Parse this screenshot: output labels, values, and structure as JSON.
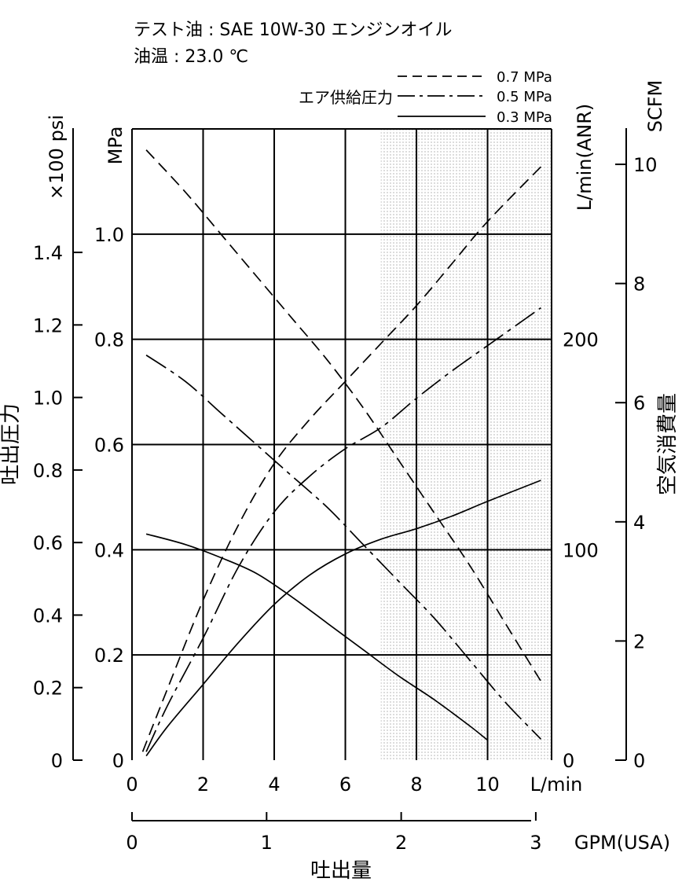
{
  "header": {
    "test_oil": "テスト油 : SAE 10W-30 エンジンオイル",
    "oil_temp": "油温 : 23.0 ℃"
  },
  "legend": {
    "group_label": "エア供給圧力",
    "entries": [
      "0.7 MPa",
      "0.5 MPa",
      "0.3 MPa"
    ]
  },
  "chart_data": {
    "type": "line",
    "shaded_region_x": [
      7.0,
      11.8
    ],
    "axes": {
      "x_lmin": {
        "label": "L/min",
        "ticks": [
          "0",
          "2",
          "4",
          "6",
          "8",
          "10"
        ],
        "range": [
          0,
          11.8
        ]
      },
      "x_gpm": {
        "label": "GPM(USA)",
        "ticks": [
          "0",
          "1",
          "2",
          "3"
        ]
      },
      "x_title": "吐出量",
      "y_mpa": {
        "label": "MPa",
        "ticks": [
          "0",
          "0.2",
          "0.4",
          "0.6",
          "0.8",
          "1.0"
        ],
        "range": [
          0,
          1.2
        ]
      },
      "y_psi": {
        "label": "×100 psi",
        "ticks": [
          "0",
          "0.2",
          "0.4",
          "0.6",
          "0.8",
          "1.0",
          "1.2",
          "1.4"
        ]
      },
      "y_left_title": "吐出圧力",
      "y_lmin_anr": {
        "label": "L/min(ANR)",
        "ticks": [
          "0",
          "100",
          "200"
        ]
      },
      "y_scfm": {
        "label": "SCFM",
        "ticks": [
          "0",
          "2",
          "4",
          "6",
          "8",
          "10"
        ]
      },
      "y_right_title": "空気消費量"
    },
    "series": [
      {
        "name": "0.7 MPa",
        "kind": "discharge_pressure",
        "units": "MPa",
        "dash": "long",
        "x": [
          0.4,
          1.5,
          2.5,
          3.5,
          4.5,
          5.5,
          6.5,
          7.5,
          8.5,
          9.5,
          10.5,
          11.5
        ],
        "y": [
          1.16,
          1.08,
          1.0,
          0.92,
          0.84,
          0.76,
          0.67,
          0.57,
          0.47,
          0.37,
          0.26,
          0.15
        ]
      },
      {
        "name": "0.5 MPa",
        "kind": "discharge_pressure",
        "units": "MPa",
        "dash": "dashdot",
        "x": [
          0.4,
          1.5,
          2.5,
          3.5,
          4.5,
          5.5,
          6.5,
          7.5,
          8.5,
          9.5,
          10.5,
          11.5
        ],
        "y": [
          0.77,
          0.72,
          0.66,
          0.6,
          0.54,
          0.48,
          0.41,
          0.34,
          0.27,
          0.19,
          0.11,
          0.04
        ]
      },
      {
        "name": "0.3 MPa",
        "kind": "discharge_pressure",
        "units": "MPa",
        "dash": "solid",
        "x": [
          0.4,
          1.5,
          2.5,
          3.5,
          4.5,
          5.5,
          6.5,
          7.5,
          8.5,
          9.5,
          10.0
        ],
        "y": [
          0.43,
          0.41,
          0.385,
          0.355,
          0.31,
          0.26,
          0.21,
          0.16,
          0.115,
          0.065,
          0.038
        ]
      },
      {
        "name": "0.7 MPa",
        "kind": "air_consumption",
        "units": "L/min(ANR)",
        "dash": "long",
        "x": [
          0.3,
          1.0,
          2.0,
          3.0,
          4.0,
          5.0,
          6.0,
          7.0,
          8.0,
          9.0,
          10.0,
          11.5
        ],
        "y": [
          4,
          34,
          76,
          112,
          141,
          162,
          180,
          198,
          216,
          236,
          256,
          282
        ]
      },
      {
        "name": "0.5 MPa",
        "kind": "air_consumption",
        "units": "L/min(ANR)",
        "dash": "dashdot",
        "x": [
          0.4,
          1.0,
          2.0,
          3.0,
          4.0,
          5.0,
          6.0,
          7.0,
          8.0,
          9.0,
          10.0,
          11.5
        ],
        "y": [
          4,
          26,
          58,
          92,
          118,
          135,
          148,
          158,
          172,
          185,
          197,
          215
        ]
      },
      {
        "name": "0.3 MPa",
        "kind": "air_consumption",
        "units": "L/min(ANR)",
        "dash": "solid",
        "x": [
          0.4,
          1.0,
          2.0,
          3.0,
          4.0,
          5.0,
          6.0,
          7.0,
          8.0,
          9.0,
          10.0,
          11.5
        ],
        "y": [
          2,
          16,
          36,
          56,
          74,
          88,
          98,
          105,
          110,
          116,
          123,
          133
        ]
      }
    ]
  }
}
